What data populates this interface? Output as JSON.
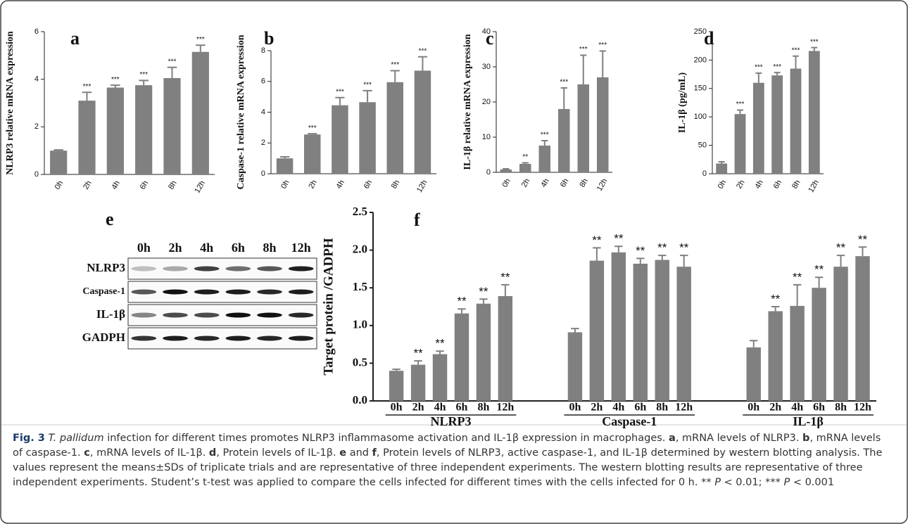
{
  "chart_data": [
    {
      "type": "bar",
      "panel": "a",
      "ylabel": "NLRP3 relative mRNA expression",
      "categories": [
        "0h",
        "2h",
        "4h",
        "6h",
        "8h",
        "12h"
      ],
      "values": [
        1.0,
        3.1,
        3.65,
        3.75,
        4.05,
        5.15
      ],
      "errors": [
        0.03,
        0.35,
        0.1,
        0.2,
        0.45,
        0.28
      ],
      "annotations": [
        null,
        "***",
        "***",
        "***",
        "***",
        "***"
      ],
      "color": "#808080",
      "ylim": [
        0,
        6
      ],
      "yticks": [
        0,
        2,
        4,
        6
      ]
    },
    {
      "type": "bar",
      "panel": "b",
      "ylabel": "Caspase-1 relative mRNA expression",
      "categories": [
        "0h",
        "2h",
        "4h",
        "6h",
        "8h",
        "12h"
      ],
      "values": [
        1.0,
        2.55,
        4.45,
        4.65,
        5.95,
        6.7
      ],
      "errors": [
        0.1,
        0.05,
        0.5,
        0.75,
        0.75,
        0.9
      ],
      "annotations": [
        null,
        "***",
        "***",
        "***",
        "***",
        "***"
      ],
      "color": "#808080",
      "ylim": [
        0,
        8
      ],
      "yticks": [
        0,
        2,
        4,
        6,
        8
      ]
    },
    {
      "type": "bar",
      "panel": "c",
      "ylabel": "IL-1β relative mRNA expression",
      "categories": [
        "0h",
        "2h",
        "4h",
        "6h",
        "8h",
        "12h"
      ],
      "values": [
        0.8,
        2.4,
        7.6,
        18,
        25,
        27
      ],
      "errors": [
        0.2,
        0.3,
        1.4,
        6,
        8.3,
        7.5
      ],
      "annotations": [
        null,
        "**",
        "***",
        "***",
        "***",
        "***"
      ],
      "color": "#808080",
      "ylim": [
        0,
        40
      ],
      "yticks": [
        0,
        10,
        20,
        30,
        40
      ]
    },
    {
      "type": "bar",
      "panel": "d",
      "ylabel": "IL-1β (pg/mL)",
      "categories": [
        "0h",
        "2h",
        "4h",
        "6h",
        "8h",
        "12h"
      ],
      "values": [
        18,
        105,
        160,
        173,
        185,
        216
      ],
      "errors": [
        3,
        7,
        17,
        5,
        22,
        6
      ],
      "annotations": [
        null,
        "***",
        "***",
        "***",
        "***",
        "***"
      ],
      "color": "#808080",
      "ylim": [
        0,
        250
      ],
      "yticks": [
        0,
        50,
        100,
        150,
        200,
        250
      ]
    },
    {
      "type": "grouped_bar",
      "panel": "f",
      "ylabel": "Target protein /GADPH",
      "color": "#808080",
      "groups": [
        {
          "name": "NLRP3",
          "categories": [
            "0h",
            "2h",
            "4h",
            "6h",
            "8h",
            "12h"
          ],
          "values": [
            0.4,
            0.48,
            0.62,
            1.16,
            1.29,
            1.39
          ],
          "errors": [
            0.02,
            0.05,
            0.04,
            0.06,
            0.06,
            0.15
          ],
          "annotations": [
            null,
            "**",
            "**",
            "**",
            "**",
            "**"
          ]
        },
        {
          "name": "Caspase-1",
          "categories": [
            "0h",
            "2h",
            "4h",
            "6h",
            "8h",
            "12h"
          ],
          "values": [
            0.91,
            1.86,
            1.97,
            1.82,
            1.87,
            1.78
          ],
          "errors": [
            0.05,
            0.17,
            0.08,
            0.07,
            0.06,
            0.15
          ],
          "annotations": [
            null,
            "**",
            "**",
            "**",
            "**",
            "**"
          ]
        },
        {
          "name": "IL-1β",
          "categories": [
            "0h",
            "2h",
            "4h",
            "6h",
            "8h",
            "12h"
          ],
          "values": [
            0.71,
            1.19,
            1.26,
            1.5,
            1.78,
            1.92
          ],
          "errors": [
            0.09,
            0.06,
            0.28,
            0.14,
            0.15,
            0.12
          ],
          "annotations": [
            null,
            "**",
            "**",
            "**",
            "**",
            "**"
          ]
        }
      ],
      "ylim": [
        0,
        2.5
      ],
      "yticks": [
        {
          "value": 0,
          "label": "0.0"
        },
        0.5,
        {
          "value": 1,
          "label": "1.0"
        },
        1.5,
        {
          "value": 2,
          "label": "2.0"
        },
        2.5
      ]
    }
  ],
  "blot": {
    "panel": "e",
    "lanes": [
      "0h",
      "2h",
      "4h",
      "6h",
      "8h",
      "12h"
    ],
    "rows": [
      "NLRP3",
      "Caspase-1",
      "IL-1β",
      "GADPH"
    ]
  },
  "caption": {
    "parts": [
      "Fig. 3",
      "T. pallidum",
      "infection for different times promotes NLRP3 inflammasome activation and IL-1β expression in macrophages.",
      "a",
      ", mRNA levels of NLRP3.",
      "b",
      ", mRNA levels of caspase-1.",
      "c",
      ", mRNA levels of IL-1β.",
      "d",
      ", Protein levels of IL-1β.",
      "e",
      "and",
      "f",
      ", Protein levels of NLRP3, active caspase-1, and IL-1β determined by western blotting analysis. The values represent the means±SDs of triplicate trials and are representative of three independent experiments. The western blotting results are representative of three independent experiments. Student’s t-test was applied to compare the cells infected for different times with the cells infected for 0 h. **",
      "P",
      "< 0.01; ***",
      "P",
      "< 0.001"
    ]
  }
}
